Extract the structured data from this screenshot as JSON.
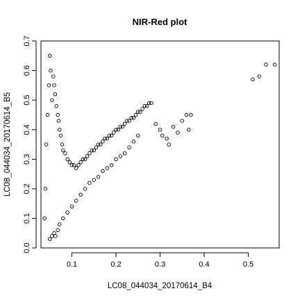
{
  "chart_data": {
    "type": "scatter",
    "title": "NIR-Red plot",
    "xlabel": "LC08_044034_20170614_B4",
    "ylabel": "LC08_044034_20170614_B5",
    "xlim": [
      0.03,
      0.57
    ],
    "ylim": [
      0.0,
      0.7
    ],
    "xticks": [
      0.1,
      0.2,
      0.3,
      0.4,
      0.5
    ],
    "yticks": [
      0.0,
      0.1,
      0.2,
      0.3,
      0.4,
      0.5,
      0.6,
      0.7
    ],
    "xtick_labels": [
      "0.1",
      "0.2",
      "0.3",
      "0.4",
      "0.5"
    ],
    "ytick_labels": [
      "0.0",
      "0.1",
      "0.2",
      "0.3",
      "0.4",
      "0.5",
      "0.6",
      "0.7"
    ],
    "marker": "open-circle",
    "grid": false,
    "legend": "none",
    "point_color": "#000000",
    "series": [
      {
        "x": [
          0.038,
          0.04,
          0.042,
          0.045,
          0.048,
          0.05,
          0.052,
          0.055,
          0.058,
          0.06,
          0.062,
          0.065,
          0.068,
          0.07,
          0.072,
          0.075,
          0.078,
          0.08,
          0.085,
          0.09,
          0.095,
          0.1,
          0.105,
          0.11,
          0.115,
          0.12,
          0.125,
          0.13,
          0.135,
          0.14,
          0.145,
          0.15,
          0.155,
          0.16,
          0.165,
          0.17,
          0.175,
          0.18,
          0.185,
          0.19,
          0.195,
          0.2,
          0.205,
          0.21,
          0.215,
          0.22,
          0.225,
          0.23,
          0.235,
          0.24,
          0.245,
          0.25,
          0.255,
          0.26,
          0.265,
          0.27,
          0.275,
          0.28,
          0.29,
          0.3,
          0.305,
          0.315,
          0.32,
          0.33,
          0.34,
          0.35,
          0.36,
          0.365,
          0.37,
          0.51,
          0.525,
          0.54,
          0.56,
          0.05,
          0.055,
          0.06,
          0.063,
          0.068,
          0.072,
          0.08,
          0.09,
          0.1,
          0.11,
          0.12,
          0.13,
          0.14,
          0.15,
          0.16,
          0.17,
          0.18,
          0.19,
          0.2,
          0.21,
          0.22,
          0.23,
          0.24,
          0.25
        ],
        "y": [
          0.1,
          0.2,
          0.35,
          0.45,
          0.55,
          0.65,
          0.6,
          0.5,
          0.58,
          0.55,
          0.52,
          0.48,
          0.45,
          0.43,
          0.4,
          0.38,
          0.35,
          0.33,
          0.32,
          0.3,
          0.29,
          0.28,
          0.28,
          0.27,
          0.28,
          0.29,
          0.3,
          0.3,
          0.31,
          0.32,
          0.33,
          0.33,
          0.34,
          0.35,
          0.35,
          0.36,
          0.37,
          0.37,
          0.38,
          0.38,
          0.39,
          0.4,
          0.4,
          0.41,
          0.41,
          0.42,
          0.43,
          0.43,
          0.44,
          0.44,
          0.45,
          0.46,
          0.46,
          0.47,
          0.48,
          0.48,
          0.49,
          0.49,
          0.42,
          0.4,
          0.38,
          0.37,
          0.35,
          0.41,
          0.39,
          0.43,
          0.45,
          0.4,
          0.45,
          0.57,
          0.58,
          0.62,
          0.62,
          0.03,
          0.04,
          0.05,
          0.04,
          0.06,
          0.08,
          0.1,
          0.12,
          0.14,
          0.16,
          0.18,
          0.2,
          0.22,
          0.23,
          0.24,
          0.26,
          0.27,
          0.28,
          0.3,
          0.31,
          0.32,
          0.34,
          0.36,
          0.38
        ]
      }
    ]
  }
}
